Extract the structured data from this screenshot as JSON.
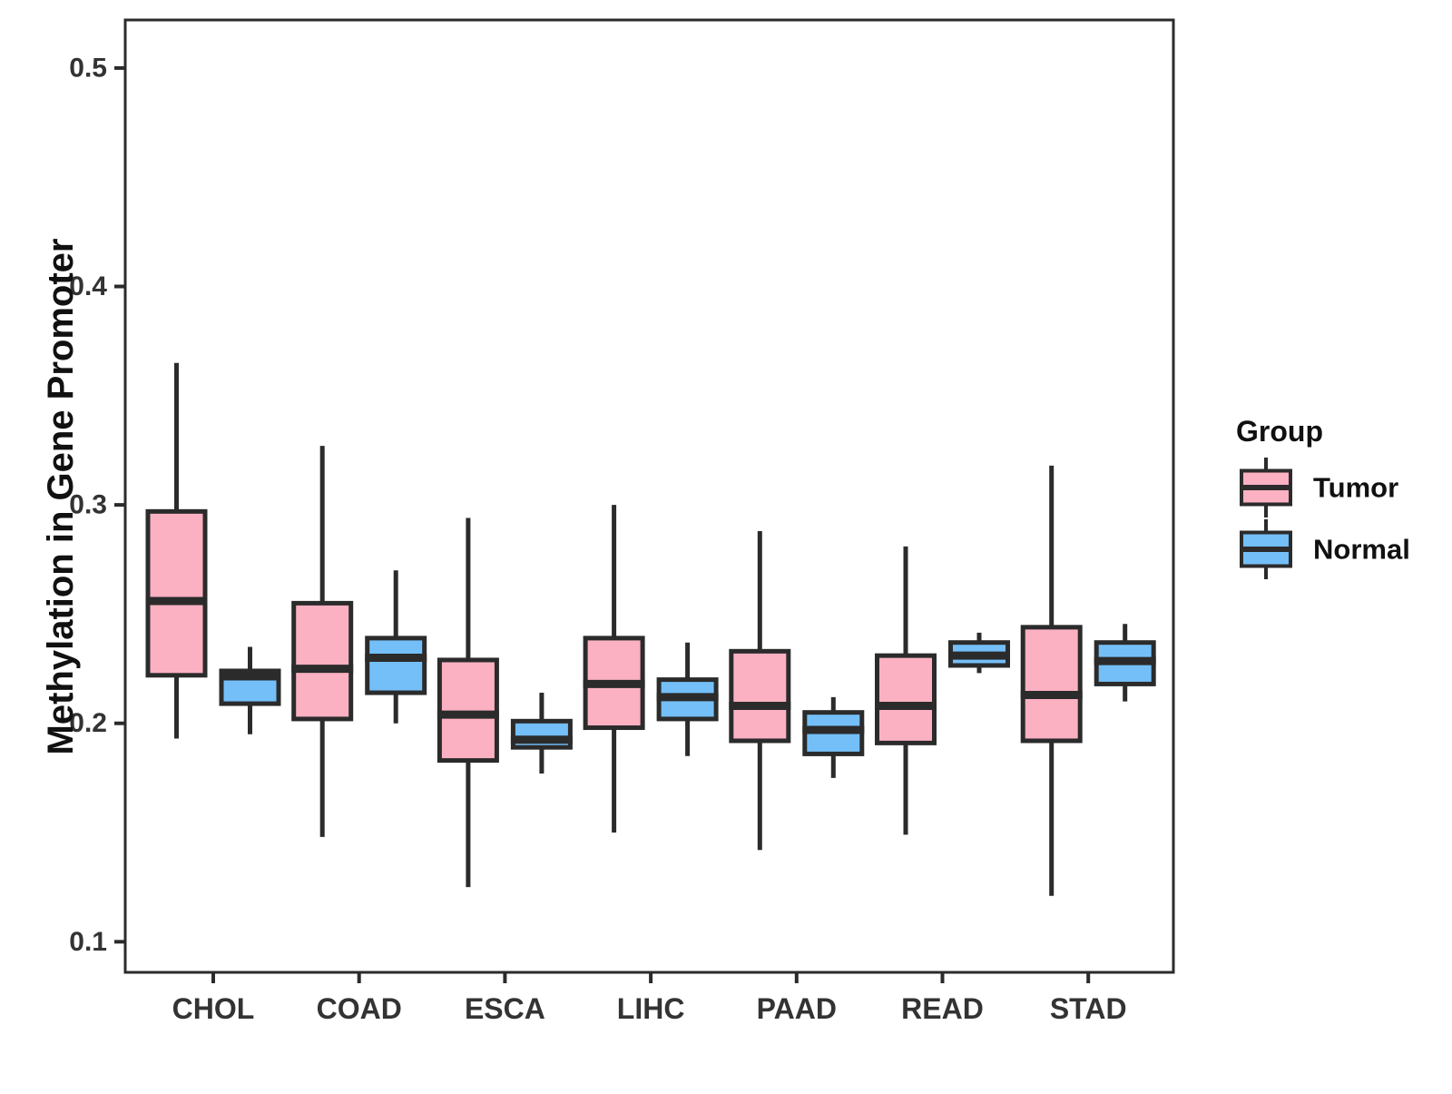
{
  "chart_data": {
    "type": "boxplot",
    "title": "",
    "xlabel": "",
    "ylabel": "Methylation in Gene Promoter",
    "categories": [
      "CHOL",
      "COAD",
      "ESCA",
      "LIHC",
      "PAAD",
      "READ",
      "STAD"
    ],
    "yticks": [
      "0.1",
      "0.2",
      "0.3",
      "0.4",
      "0.5"
    ],
    "ytick_values": [
      0.1,
      0.2,
      0.3,
      0.4,
      0.5
    ],
    "ylim": [
      0.086,
      0.522
    ],
    "grid": "off",
    "legend": {
      "position": "right",
      "title": "Group",
      "entries": [
        {
          "label": "Tumor",
          "color": "#FBB1C2"
        },
        {
          "label": "Normal",
          "color": "#74BFF8"
        }
      ]
    },
    "colors": {
      "tumor_fill": "#FBB1C2",
      "normal_fill": "#74BFF8",
      "line": "#2B2B2B",
      "tick_text": "#333333",
      "title_text": "#111111",
      "background": "#ffffff"
    },
    "series": [
      {
        "name": "Tumor",
        "color": "#FBB1C2",
        "boxes": [
          {
            "category": "CHOL",
            "whisker_low": 0.193,
            "q1": 0.222,
            "median": 0.256,
            "q3": 0.297,
            "whisker_high": 0.365
          },
          {
            "category": "COAD",
            "whisker_low": 0.148,
            "q1": 0.202,
            "median": 0.225,
            "q3": 0.255,
            "whisker_high": 0.327
          },
          {
            "category": "ESCA",
            "whisker_low": 0.125,
            "q1": 0.183,
            "median": 0.204,
            "q3": 0.229,
            "whisker_high": 0.294
          },
          {
            "category": "LIHC",
            "whisker_low": 0.15,
            "q1": 0.198,
            "median": 0.218,
            "q3": 0.239,
            "whisker_high": 0.3
          },
          {
            "category": "PAAD",
            "whisker_low": 0.142,
            "q1": 0.192,
            "median": 0.208,
            "q3": 0.233,
            "whisker_high": 0.288
          },
          {
            "category": "READ",
            "whisker_low": 0.149,
            "q1": 0.191,
            "median": 0.208,
            "q3": 0.231,
            "whisker_high": 0.281
          },
          {
            "category": "STAD",
            "whisker_low": 0.121,
            "q1": 0.192,
            "median": 0.213,
            "q3": 0.244,
            "whisker_high": 0.318
          }
        ]
      },
      {
        "name": "Normal",
        "color": "#74BFF8",
        "boxes": [
          {
            "category": "CHOL",
            "whisker_low": 0.195,
            "q1": 0.209,
            "median": 0.2215,
            "q3": 0.224,
            "whisker_high": 0.235
          },
          {
            "category": "COAD",
            "whisker_low": 0.2,
            "q1": 0.214,
            "median": 0.23,
            "q3": 0.239,
            "whisker_high": 0.27
          },
          {
            "category": "ESCA",
            "whisker_low": 0.177,
            "q1": 0.189,
            "median": 0.1925,
            "q3": 0.201,
            "whisker_high": 0.214
          },
          {
            "category": "LIHC",
            "whisker_low": 0.185,
            "q1": 0.202,
            "median": 0.212,
            "q3": 0.22,
            "whisker_high": 0.237
          },
          {
            "category": "PAAD",
            "whisker_low": 0.175,
            "q1": 0.186,
            "median": 0.197,
            "q3": 0.205,
            "whisker_high": 0.212
          },
          {
            "category": "READ",
            "whisker_low": 0.223,
            "q1": 0.2265,
            "median": 0.231,
            "q3": 0.237,
            "whisker_high": 0.2415
          },
          {
            "category": "STAD",
            "whisker_low": 0.21,
            "q1": 0.218,
            "median": 0.2285,
            "q3": 0.237,
            "whisker_high": 0.2455
          }
        ]
      }
    ]
  }
}
